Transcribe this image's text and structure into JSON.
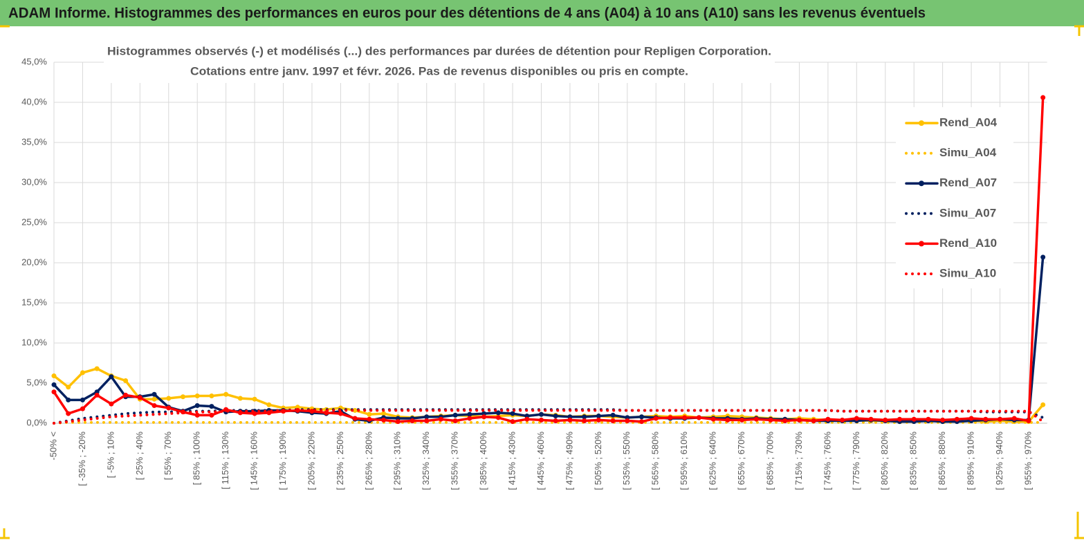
{
  "chart_data": {
    "type": "line",
    "title": "ADAM Informe. Histogrammes des performances en euros pour des détentions de 4 ans (A04) à 10 ans (A10) sans les revenus éventuels",
    "subtitle": [
      "Histogrammes observés (-) et modélisés (...)  des performances par durées de détention pour Repligen Corporation.",
      "Cotations entre janv. 1997 et févr. 2026. Pas de revenus disponibles ou pris en compte."
    ],
    "categories": [
      "-50% <",
      null,
      "[ -35% ; -20%",
      null,
      "[ -5% ; 10%",
      null,
      "[ 25% ; 40%",
      null,
      "[ 55% ; 70%",
      null,
      "[ 85% ; 100%",
      null,
      "[ 115% ; 130%",
      null,
      "[ 145% ; 160%",
      null,
      "[ 175% ; 190%",
      null,
      "[ 205% ; 220%",
      null,
      "[ 235% ; 250%",
      null,
      "[ 265% ; 280%",
      null,
      "[ 295% ; 310%",
      null,
      "[ 325% ; 340%",
      null,
      "[ 355% ; 370%",
      null,
      "[ 385% ; 400%",
      null,
      "[ 415% ; 430%",
      null,
      "[ 445% ; 460%",
      null,
      "[ 475% ; 490%",
      null,
      "[ 505% ; 520%",
      null,
      "[ 535% ; 550%",
      null,
      "[ 565% ; 580%",
      null,
      "[ 595% ; 610%",
      null,
      "[ 625% ; 640%",
      null,
      "[ 655% ; 670%",
      null,
      "[ 685% ; 700%",
      null,
      "[ 715% ; 730%",
      null,
      "[ 745% ; 760%",
      null,
      "[ 775% ; 790%",
      null,
      "[ 805% ; 820%",
      null,
      "[ 835% ; 850%",
      null,
      "[ 865% ; 880%",
      null,
      "[ 895% ; 910%",
      null,
      "[ 925% ; 940%",
      null,
      "[ 955% ; 970%",
      null
    ],
    "series": [
      {
        "name": "Rend_A04",
        "color": "#ffc000",
        "style": "solid",
        "marker": true,
        "values": [
          5.9,
          4.5,
          6.3,
          6.8,
          5.9,
          5.3,
          3.0,
          3.0,
          3.1,
          3.3,
          3.4,
          3.4,
          3.6,
          3.1,
          3.0,
          2.3,
          1.9,
          2.0,
          1.8,
          1.7,
          1.9,
          1.6,
          1.1,
          1.2,
          0.8,
          0.7,
          0.8,
          0.9,
          1.0,
          0.9,
          0.8,
          0.9,
          1.0,
          0.9,
          1.1,
          1.0,
          0.8,
          0.9,
          0.9,
          0.8,
          0.7,
          0.8,
          0.9,
          0.8,
          0.9,
          0.7,
          0.8,
          0.9,
          0.8,
          0.7,
          0.6,
          0.5,
          0.6,
          0.5,
          0.4,
          0.3,
          0.4,
          0.3,
          0.3,
          0.2,
          0.3,
          0.4,
          0.3,
          0.2,
          0.3,
          0.2,
          0.3,
          0.2,
          0.2,
          2.3
        ]
      },
      {
        "name": "Simu_A04",
        "color": "#ffc000",
        "style": "dotted",
        "marker": false,
        "values": [
          0.0,
          0.1,
          0.1,
          0.1,
          0.1,
          0.1,
          0.1,
          0.1,
          0.1,
          0.1,
          0.1,
          0.1,
          0.1,
          0.1,
          0.1,
          0.1,
          0.1,
          0.1,
          0.1,
          0.1,
          0.1,
          0.1,
          0.1,
          0.1,
          0.1,
          0.1,
          0.1,
          0.1,
          0.1,
          0.1,
          0.1,
          0.1,
          0.1,
          0.1,
          0.1,
          0.1,
          0.1,
          0.1,
          0.1,
          0.1,
          0.1,
          0.1,
          0.1,
          0.1,
          0.1,
          0.1,
          0.1,
          0.1,
          0.1,
          0.1,
          0.1,
          0.1,
          0.1,
          0.1,
          0.1,
          0.1,
          0.1,
          0.1,
          0.1,
          0.1,
          0.1,
          0.1,
          0.1,
          0.1,
          0.1,
          0.1,
          0.1,
          0.1,
          0.1,
          0.1
        ]
      },
      {
        "name": "Rend_A07",
        "color": "#002060",
        "style": "solid",
        "marker": true,
        "values": [
          4.8,
          2.9,
          2.9,
          3.9,
          5.8,
          3.3,
          3.3,
          3.6,
          2.0,
          1.5,
          2.2,
          2.1,
          1.4,
          1.5,
          1.5,
          1.6,
          1.6,
          1.5,
          1.3,
          1.2,
          1.5,
          0.5,
          0.3,
          0.7,
          0.6,
          0.6,
          0.8,
          0.8,
          1.0,
          1.1,
          1.2,
          1.3,
          1.2,
          0.9,
          1.1,
          0.9,
          0.8,
          0.8,
          0.9,
          1.0,
          0.7,
          0.8,
          0.7,
          0.6,
          0.6,
          0.7,
          0.6,
          0.6,
          0.5,
          0.6,
          0.5,
          0.5,
          0.4,
          0.3,
          0.3,
          0.3,
          0.3,
          0.4,
          0.3,
          0.2,
          0.2,
          0.3,
          0.2,
          0.2,
          0.3,
          0.4,
          0.5,
          0.4,
          0.4,
          20.7
        ]
      },
      {
        "name": "Simu_A07",
        "color": "#002060",
        "style": "dotted",
        "marker": false,
        "values": [
          0.0,
          0.3,
          0.6,
          0.8,
          1.0,
          1.2,
          1.3,
          1.4,
          1.4,
          1.5,
          1.5,
          1.5,
          1.6,
          1.6,
          1.6,
          1.6,
          1.6,
          1.7,
          1.7,
          1.7,
          1.7,
          1.7,
          1.7,
          1.7,
          1.7,
          1.7,
          1.7,
          1.7,
          1.7,
          1.7,
          1.7,
          1.7,
          1.7,
          1.7,
          1.7,
          1.7,
          1.7,
          1.7,
          1.7,
          1.7,
          1.6,
          1.6,
          1.6,
          1.6,
          1.6,
          1.6,
          1.6,
          1.6,
          1.6,
          1.6,
          1.6,
          1.6,
          1.6,
          1.6,
          1.6,
          1.5,
          1.5,
          1.5,
          1.5,
          1.5,
          1.5,
          1.5,
          1.5,
          1.5,
          1.5,
          1.4,
          1.4,
          1.4,
          1.4,
          0.7
        ]
      },
      {
        "name": "Rend_A10",
        "color": "#ff0000",
        "style": "solid",
        "marker": true,
        "values": [
          3.9,
          1.2,
          1.8,
          3.5,
          2.4,
          3.5,
          3.2,
          2.2,
          1.9,
          1.4,
          1.0,
          1.0,
          1.7,
          1.3,
          1.2,
          1.3,
          1.5,
          1.6,
          1.5,
          1.3,
          1.2,
          0.6,
          0.5,
          0.4,
          0.2,
          0.3,
          0.3,
          0.5,
          0.3,
          0.6,
          0.8,
          0.7,
          0.2,
          0.5,
          0.4,
          0.3,
          0.4,
          0.3,
          0.4,
          0.3,
          0.3,
          0.2,
          0.6,
          0.7,
          0.7,
          0.7,
          0.5,
          0.4,
          0.4,
          0.5,
          0.4,
          0.3,
          0.4,
          0.3,
          0.5,
          0.4,
          0.6,
          0.5,
          0.4,
          0.5,
          0.5,
          0.5,
          0.4,
          0.5,
          0.6,
          0.5,
          0.5,
          0.6,
          0.3,
          40.6
        ]
      },
      {
        "name": "Simu_A10",
        "color": "#ff0000",
        "style": "dotted",
        "marker": false,
        "values": [
          0.0,
          0.2,
          0.4,
          0.6,
          0.8,
          0.9,
          1.0,
          1.1,
          1.2,
          1.3,
          1.4,
          1.4,
          1.5,
          1.5,
          1.5,
          1.5,
          1.6,
          1.6,
          1.6,
          1.6,
          1.6,
          1.6,
          1.6,
          1.6,
          1.6,
          1.6,
          1.6,
          1.6,
          1.6,
          1.6,
          1.6,
          1.6,
          1.6,
          1.6,
          1.6,
          1.6,
          1.6,
          1.6,
          1.6,
          1.6,
          1.6,
          1.6,
          1.6,
          1.6,
          1.6,
          1.6,
          1.6,
          1.6,
          1.6,
          1.6,
          1.6,
          1.6,
          1.6,
          1.6,
          1.6,
          1.5,
          1.5,
          1.5,
          1.5,
          1.5,
          1.5,
          1.5,
          1.5,
          1.5,
          1.5,
          1.5,
          1.5,
          1.5,
          1.5,
          0.2
        ]
      }
    ],
    "ylim": [
      0,
      45
    ],
    "yticks": [
      {
        "value": 0,
        "label": "0,0%"
      },
      {
        "value": 5,
        "label": "5,0%"
      },
      {
        "value": 10,
        "label": "10,0%"
      },
      {
        "value": 15,
        "label": "15,0%"
      },
      {
        "value": 20,
        "label": "20,0%"
      },
      {
        "value": 25,
        "label": "25,0%"
      },
      {
        "value": 30,
        "label": "30,0%"
      },
      {
        "value": 35,
        "label": "35,0%"
      },
      {
        "value": 40,
        "label": "40,0%"
      },
      {
        "value": 45,
        "label": "45,0%"
      }
    ],
    "grid": true,
    "legend": "right"
  }
}
